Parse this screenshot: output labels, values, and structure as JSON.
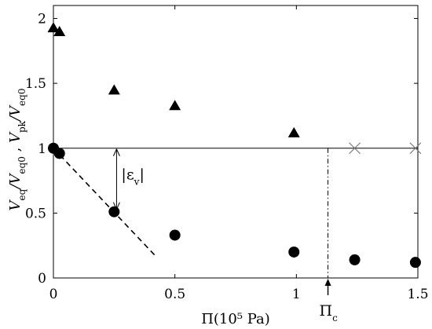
{
  "chart_data": {
    "type": "scatter",
    "xlabel": "Π(10⁵ Pa)",
    "ylabel": {
      "bottom_main": "V",
      "bottom_sub": "eq",
      "bottom_div": "/V",
      "bottom_sub2": "eq0",
      "sep": ",",
      "top_main": "V",
      "top_sub": "pk",
      "top_div": "/V",
      "top_sub2": "eq0"
    },
    "xlim": [
      0,
      1.5
    ],
    "ylim": [
      0,
      2.1
    ],
    "x_ticks": [
      0,
      0.5,
      1,
      1.5
    ],
    "x_tick_labels": [
      "0",
      "0.5",
      "1",
      "1.5"
    ],
    "y_ticks": [
      0,
      0.5,
      1,
      1.5,
      2
    ],
    "y_tick_labels": [
      "0",
      "0.5",
      "1",
      "1.5",
      "2"
    ],
    "grid": false,
    "series": [
      {
        "marker": "triangle",
        "x": [
          0.0,
          0.025,
          0.25,
          0.5,
          0.99
        ],
        "y": [
          1.93,
          1.9,
          1.45,
          1.33,
          1.12
        ]
      },
      {
        "marker": "circle",
        "x": [
          0.0,
          0.025,
          0.25,
          0.5,
          0.99,
          1.24,
          1.49
        ],
        "y": [
          1.0,
          0.96,
          0.51,
          0.33,
          0.2,
          0.14,
          0.12
        ]
      },
      {
        "marker": "x",
        "x": [
          1.24,
          1.49
        ],
        "y": [
          1.0,
          1.0
        ]
      }
    ],
    "reference_line": {
      "y": 1.0
    },
    "dashed_fit": {
      "x": [
        0.0,
        0.42
      ],
      "y": [
        1.0,
        0.17
      ]
    },
    "critical_line": {
      "x": 1.13,
      "label_main": "Π",
      "label_sub": "c"
    },
    "epsilon_annotation": {
      "x": 0.26,
      "y_from": 1.0,
      "y_to": 0.51,
      "label": "|ε",
      "label_sub": "v",
      "label_end": "|"
    }
  }
}
